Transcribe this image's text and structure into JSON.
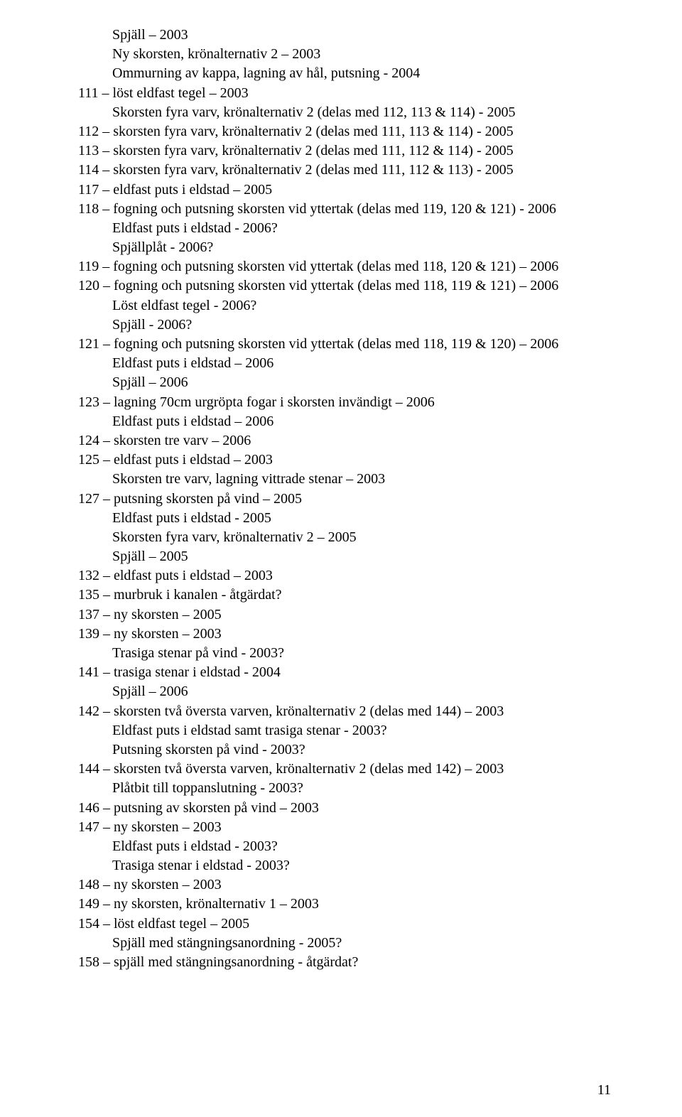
{
  "page_number": "11",
  "lines": [
    {
      "text": "Spjäll – 2003",
      "indent": true
    },
    {
      "text": "Ny skorsten, krönalternativ 2 – 2003",
      "indent": true
    },
    {
      "text": "Ommurning av kappa, lagning av hål, putsning - 2004",
      "indent": true
    },
    {
      "text": "111 – löst eldfast tegel – 2003",
      "indent": false
    },
    {
      "text": "Skorsten fyra varv, krönalternativ 2 (delas med 112, 113 & 114) - 2005",
      "indent": true
    },
    {
      "text": "112 – skorsten fyra varv, krönalternativ 2 (delas med 111, 113 & 114) - 2005",
      "indent": false
    },
    {
      "text": "113 – skorsten fyra varv, krönalternativ 2 (delas med 111, 112 & 114) - 2005",
      "indent": false
    },
    {
      "text": "114 – skorsten fyra varv, krönalternativ 2 (delas med 111, 112 & 113) - 2005",
      "indent": false
    },
    {
      "text": "117 – eldfast puts i eldstad – 2005",
      "indent": false
    },
    {
      "text": "118 – fogning och putsning skorsten vid yttertak (delas med 119, 120 & 121) - 2006",
      "indent": false
    },
    {
      "text": "Eldfast puts i eldstad - 2006?",
      "indent": true
    },
    {
      "text": "Spjällplåt - 2006?",
      "indent": true
    },
    {
      "text": "119 – fogning och putsning skorsten vid yttertak (delas med 118, 120 & 121) – 2006",
      "indent": false
    },
    {
      "text": "120 – fogning och putsning skorsten vid yttertak (delas med 118, 119 & 121) – 2006",
      "indent": false
    },
    {
      "text": "Löst eldfast tegel - 2006?",
      "indent": true
    },
    {
      "text": "Spjäll - 2006?",
      "indent": true
    },
    {
      "text": "121 – fogning och putsning skorsten vid yttertak (delas med 118, 119 & 120) – 2006",
      "indent": false
    },
    {
      "text": "Eldfast puts i eldstad – 2006",
      "indent": true
    },
    {
      "text": "Spjäll – 2006",
      "indent": true
    },
    {
      "text": "123 – lagning 70cm urgröpta fogar i skorsten invändigt – 2006",
      "indent": false
    },
    {
      "text": "Eldfast puts i eldstad – 2006",
      "indent": true
    },
    {
      "text": "124 – skorsten tre varv – 2006",
      "indent": false
    },
    {
      "text": "125 – eldfast puts i eldstad – 2003",
      "indent": false
    },
    {
      "text": "Skorsten tre varv, lagning vittrade stenar – 2003",
      "indent": true
    },
    {
      "text": "127 – putsning skorsten på vind – 2005",
      "indent": false
    },
    {
      "text": "Eldfast puts i eldstad - 2005",
      "indent": true
    },
    {
      "text": "Skorsten fyra varv, krönalternativ 2 – 2005",
      "indent": true
    },
    {
      "text": "Spjäll – 2005",
      "indent": true
    },
    {
      "text": "132 – eldfast puts i eldstad – 2003",
      "indent": false
    },
    {
      "text": "135 – murbruk i kanalen - åtgärdat?",
      "indent": false
    },
    {
      "text": "137 – ny skorsten – 2005",
      "indent": false
    },
    {
      "text": "139 – ny skorsten – 2003",
      "indent": false
    },
    {
      "text": "Trasiga stenar på vind - 2003?",
      "indent": true
    },
    {
      "text": "141 – trasiga stenar i eldstad - 2004",
      "indent": false
    },
    {
      "text": "Spjäll – 2006",
      "indent": true
    },
    {
      "text": "142 – skorsten två översta varven, krönalternativ 2 (delas med 144) – 2003",
      "indent": false
    },
    {
      "text": "Eldfast puts i eldstad samt trasiga stenar - 2003?",
      "indent": true
    },
    {
      "text": "Putsning skorsten på vind - 2003?",
      "indent": true
    },
    {
      "text": "144 – skorsten två översta varven, krönalternativ 2 (delas med 142) – 2003",
      "indent": false
    },
    {
      "text": "Plåtbit till toppanslutning - 2003?",
      "indent": true
    },
    {
      "text": "146 – putsning av skorsten på vind – 2003",
      "indent": false
    },
    {
      "text": "147 – ny skorsten – 2003",
      "indent": false
    },
    {
      "text": "Eldfast puts i eldstad - 2003?",
      "indent": true
    },
    {
      "text": "Trasiga stenar i eldstad - 2003?",
      "indent": true
    },
    {
      "text": "148 – ny skorsten – 2003",
      "indent": false
    },
    {
      "text": "149 – ny skorsten, krönalternativ 1 – 2003",
      "indent": false
    },
    {
      "text": "154 – löst eldfast tegel – 2005",
      "indent": false
    },
    {
      "text": "Spjäll med stängningsanordning - 2005?",
      "indent": true
    },
    {
      "text": "158 – spjäll med stängningsanordning - åtgärdat?",
      "indent": false
    }
  ]
}
